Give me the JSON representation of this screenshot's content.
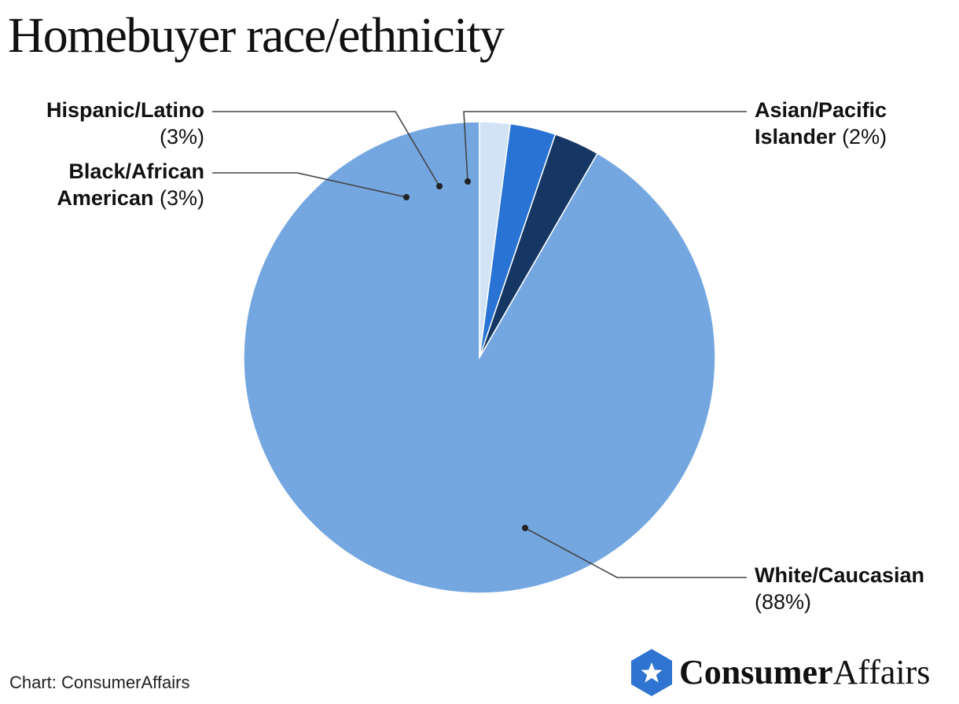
{
  "page": {
    "title": "Homebuyer race/ethnicity",
    "source": "Chart: ConsumerAffairs"
  },
  "brand": {
    "name_bold": "Consumer",
    "name_regular": "Affairs",
    "icon": "star-hexagon-logo-icon",
    "color": "#2f74d0"
  },
  "chart_data": {
    "type": "pie",
    "title": "Homebuyer race/ethnicity",
    "start": "12 o'clock, clockwise",
    "slices": [
      {
        "label": "White/Caucasian",
        "value": 88,
        "value_label": "(88%)",
        "color": "#74a6e0"
      },
      {
        "label": "Black/African American",
        "label_line1": "Black/African",
        "label_line2": "American",
        "value": 3,
        "value_label": "(3%)",
        "color": "#163763"
      },
      {
        "label": "Hispanic/Latino",
        "value": 3,
        "value_label": "(3%)",
        "color": "#2873d3"
      },
      {
        "label": "Asian/Pacific Islander",
        "label_line1": "Asian/Pacific",
        "label_line2": "Islander",
        "value": 2,
        "value_label": "(2%)",
        "color": "#d2e3f6"
      }
    ]
  }
}
